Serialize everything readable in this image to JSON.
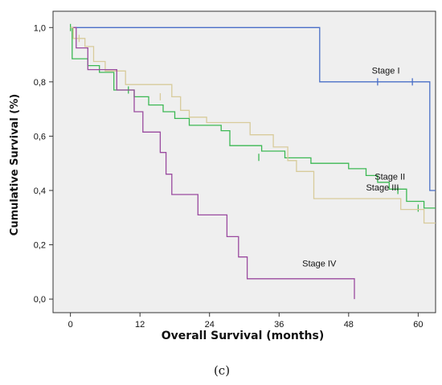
{
  "chart_data": {
    "type": "line",
    "subtype": "kaplan-meier",
    "title": "",
    "xlabel": "Overall Survival (months)",
    "ylabel": "Cumulative Survival (%)",
    "caption": "(c)",
    "xlim": [
      -3,
      63
    ],
    "ylim": [
      -0.05,
      1.06
    ],
    "xticks": [
      0,
      12,
      24,
      36,
      48,
      60
    ],
    "xtick_labels": [
      "0",
      "12",
      "24",
      "36",
      "48",
      "60"
    ],
    "yticks": [
      0.0,
      0.2,
      0.4,
      0.6,
      0.8,
      1.0
    ],
    "ytick_labels": [
      "0,0",
      "0,2",
      "0,4",
      "0,6",
      "0,8",
      "1,0"
    ],
    "grid": false,
    "plot_background": "#efefef",
    "series": [
      {
        "name": "Stage I",
        "color": "#4a6fc7",
        "points": [
          [
            0,
            1.0
          ],
          [
            43,
            1.0
          ],
          [
            43,
            0.8
          ],
          [
            62,
            0.8
          ],
          [
            62,
            0.4
          ],
          [
            63,
            0.4
          ]
        ],
        "censored": [
          [
            53,
            0.8
          ],
          [
            59,
            0.8
          ]
        ],
        "label_at": [
          52,
          0.83
        ]
      },
      {
        "name": "Stage II",
        "color": "#3cb853",
        "points": [
          [
            0,
            1.0
          ],
          [
            0.3,
            1.0
          ],
          [
            0.3,
            0.885
          ],
          [
            3,
            0.885
          ],
          [
            3,
            0.86
          ],
          [
            5,
            0.86
          ],
          [
            5,
            0.835
          ],
          [
            7.5,
            0.835
          ],
          [
            7.5,
            0.77
          ],
          [
            11,
            0.77
          ],
          [
            11,
            0.745
          ],
          [
            13.5,
            0.745
          ],
          [
            13.5,
            0.715
          ],
          [
            16,
            0.715
          ],
          [
            16,
            0.69
          ],
          [
            18,
            0.69
          ],
          [
            18,
            0.665
          ],
          [
            20.5,
            0.665
          ],
          [
            20.5,
            0.64
          ],
          [
            26,
            0.64
          ],
          [
            26,
            0.62
          ],
          [
            27.5,
            0.62
          ],
          [
            27.5,
            0.565
          ],
          [
            33,
            0.565
          ],
          [
            33,
            0.545
          ],
          [
            37,
            0.545
          ],
          [
            37,
            0.52
          ],
          [
            41.5,
            0.52
          ],
          [
            41.5,
            0.5
          ],
          [
            48,
            0.5
          ],
          [
            48,
            0.48
          ],
          [
            51,
            0.48
          ],
          [
            51,
            0.455
          ],
          [
            53,
            0.455
          ],
          [
            53,
            0.43
          ],
          [
            55,
            0.43
          ],
          [
            55,
            0.405
          ],
          [
            58,
            0.405
          ],
          [
            58,
            0.36
          ],
          [
            61,
            0.36
          ],
          [
            61,
            0.335
          ],
          [
            63,
            0.335
          ]
        ],
        "censored": [
          [
            0,
            1.0
          ],
          [
            10,
            0.77
          ],
          [
            32.5,
            0.522
          ],
          [
            56.5,
            0.4
          ],
          [
            60,
            0.335
          ]
        ],
        "label_at": [
          52.5,
          0.44
        ]
      },
      {
        "name": "Stage III",
        "color": "#d8cb9b",
        "points": [
          [
            0,
            1.0
          ],
          [
            0.5,
            1.0
          ],
          [
            0.5,
            0.96
          ],
          [
            2.5,
            0.96
          ],
          [
            2.5,
            0.93
          ],
          [
            4,
            0.93
          ],
          [
            4,
            0.875
          ],
          [
            6,
            0.875
          ],
          [
            6,
            0.84
          ],
          [
            9.5,
            0.84
          ],
          [
            9.5,
            0.79
          ],
          [
            17.5,
            0.79
          ],
          [
            17.5,
            0.745
          ],
          [
            19,
            0.745
          ],
          [
            19,
            0.695
          ],
          [
            20.5,
            0.695
          ],
          [
            20.5,
            0.67
          ],
          [
            23.5,
            0.67
          ],
          [
            23.5,
            0.65
          ],
          [
            31,
            0.65
          ],
          [
            31,
            0.605
          ],
          [
            35,
            0.605
          ],
          [
            35,
            0.56
          ],
          [
            37.5,
            0.56
          ],
          [
            37.5,
            0.51
          ],
          [
            39,
            0.51
          ],
          [
            39,
            0.47
          ],
          [
            42,
            0.47
          ],
          [
            42,
            0.37
          ],
          [
            57,
            0.37
          ],
          [
            57,
            0.33
          ],
          [
            61,
            0.33
          ],
          [
            61,
            0.28
          ],
          [
            63,
            0.28
          ]
        ],
        "censored": [
          [
            1.5,
            0.96
          ],
          [
            15.5,
            0.745
          ]
        ],
        "label_at": [
          51,
          0.4
        ]
      },
      {
        "name": "Stage IV",
        "color": "#9a4a9f",
        "points": [
          [
            0.5,
            1.0
          ],
          [
            1,
            1.0
          ],
          [
            1,
            0.925
          ],
          [
            3,
            0.925
          ],
          [
            3,
            0.845
          ],
          [
            8,
            0.845
          ],
          [
            8,
            0.77
          ],
          [
            11,
            0.77
          ],
          [
            11,
            0.69
          ],
          [
            12.5,
            0.69
          ],
          [
            12.5,
            0.615
          ],
          [
            15.5,
            0.615
          ],
          [
            15.5,
            0.54
          ],
          [
            16.5,
            0.54
          ],
          [
            16.5,
            0.46
          ],
          [
            17.5,
            0.46
          ],
          [
            17.5,
            0.385
          ],
          [
            22,
            0.385
          ],
          [
            22,
            0.31
          ],
          [
            27,
            0.31
          ],
          [
            27,
            0.23
          ],
          [
            29,
            0.23
          ],
          [
            29,
            0.155
          ],
          [
            30.5,
            0.155
          ],
          [
            30.5,
            0.075
          ],
          [
            49,
            0.075
          ],
          [
            49,
            0.0
          ]
        ],
        "censored": [],
        "label_at": [
          40,
          0.12
        ]
      }
    ]
  }
}
